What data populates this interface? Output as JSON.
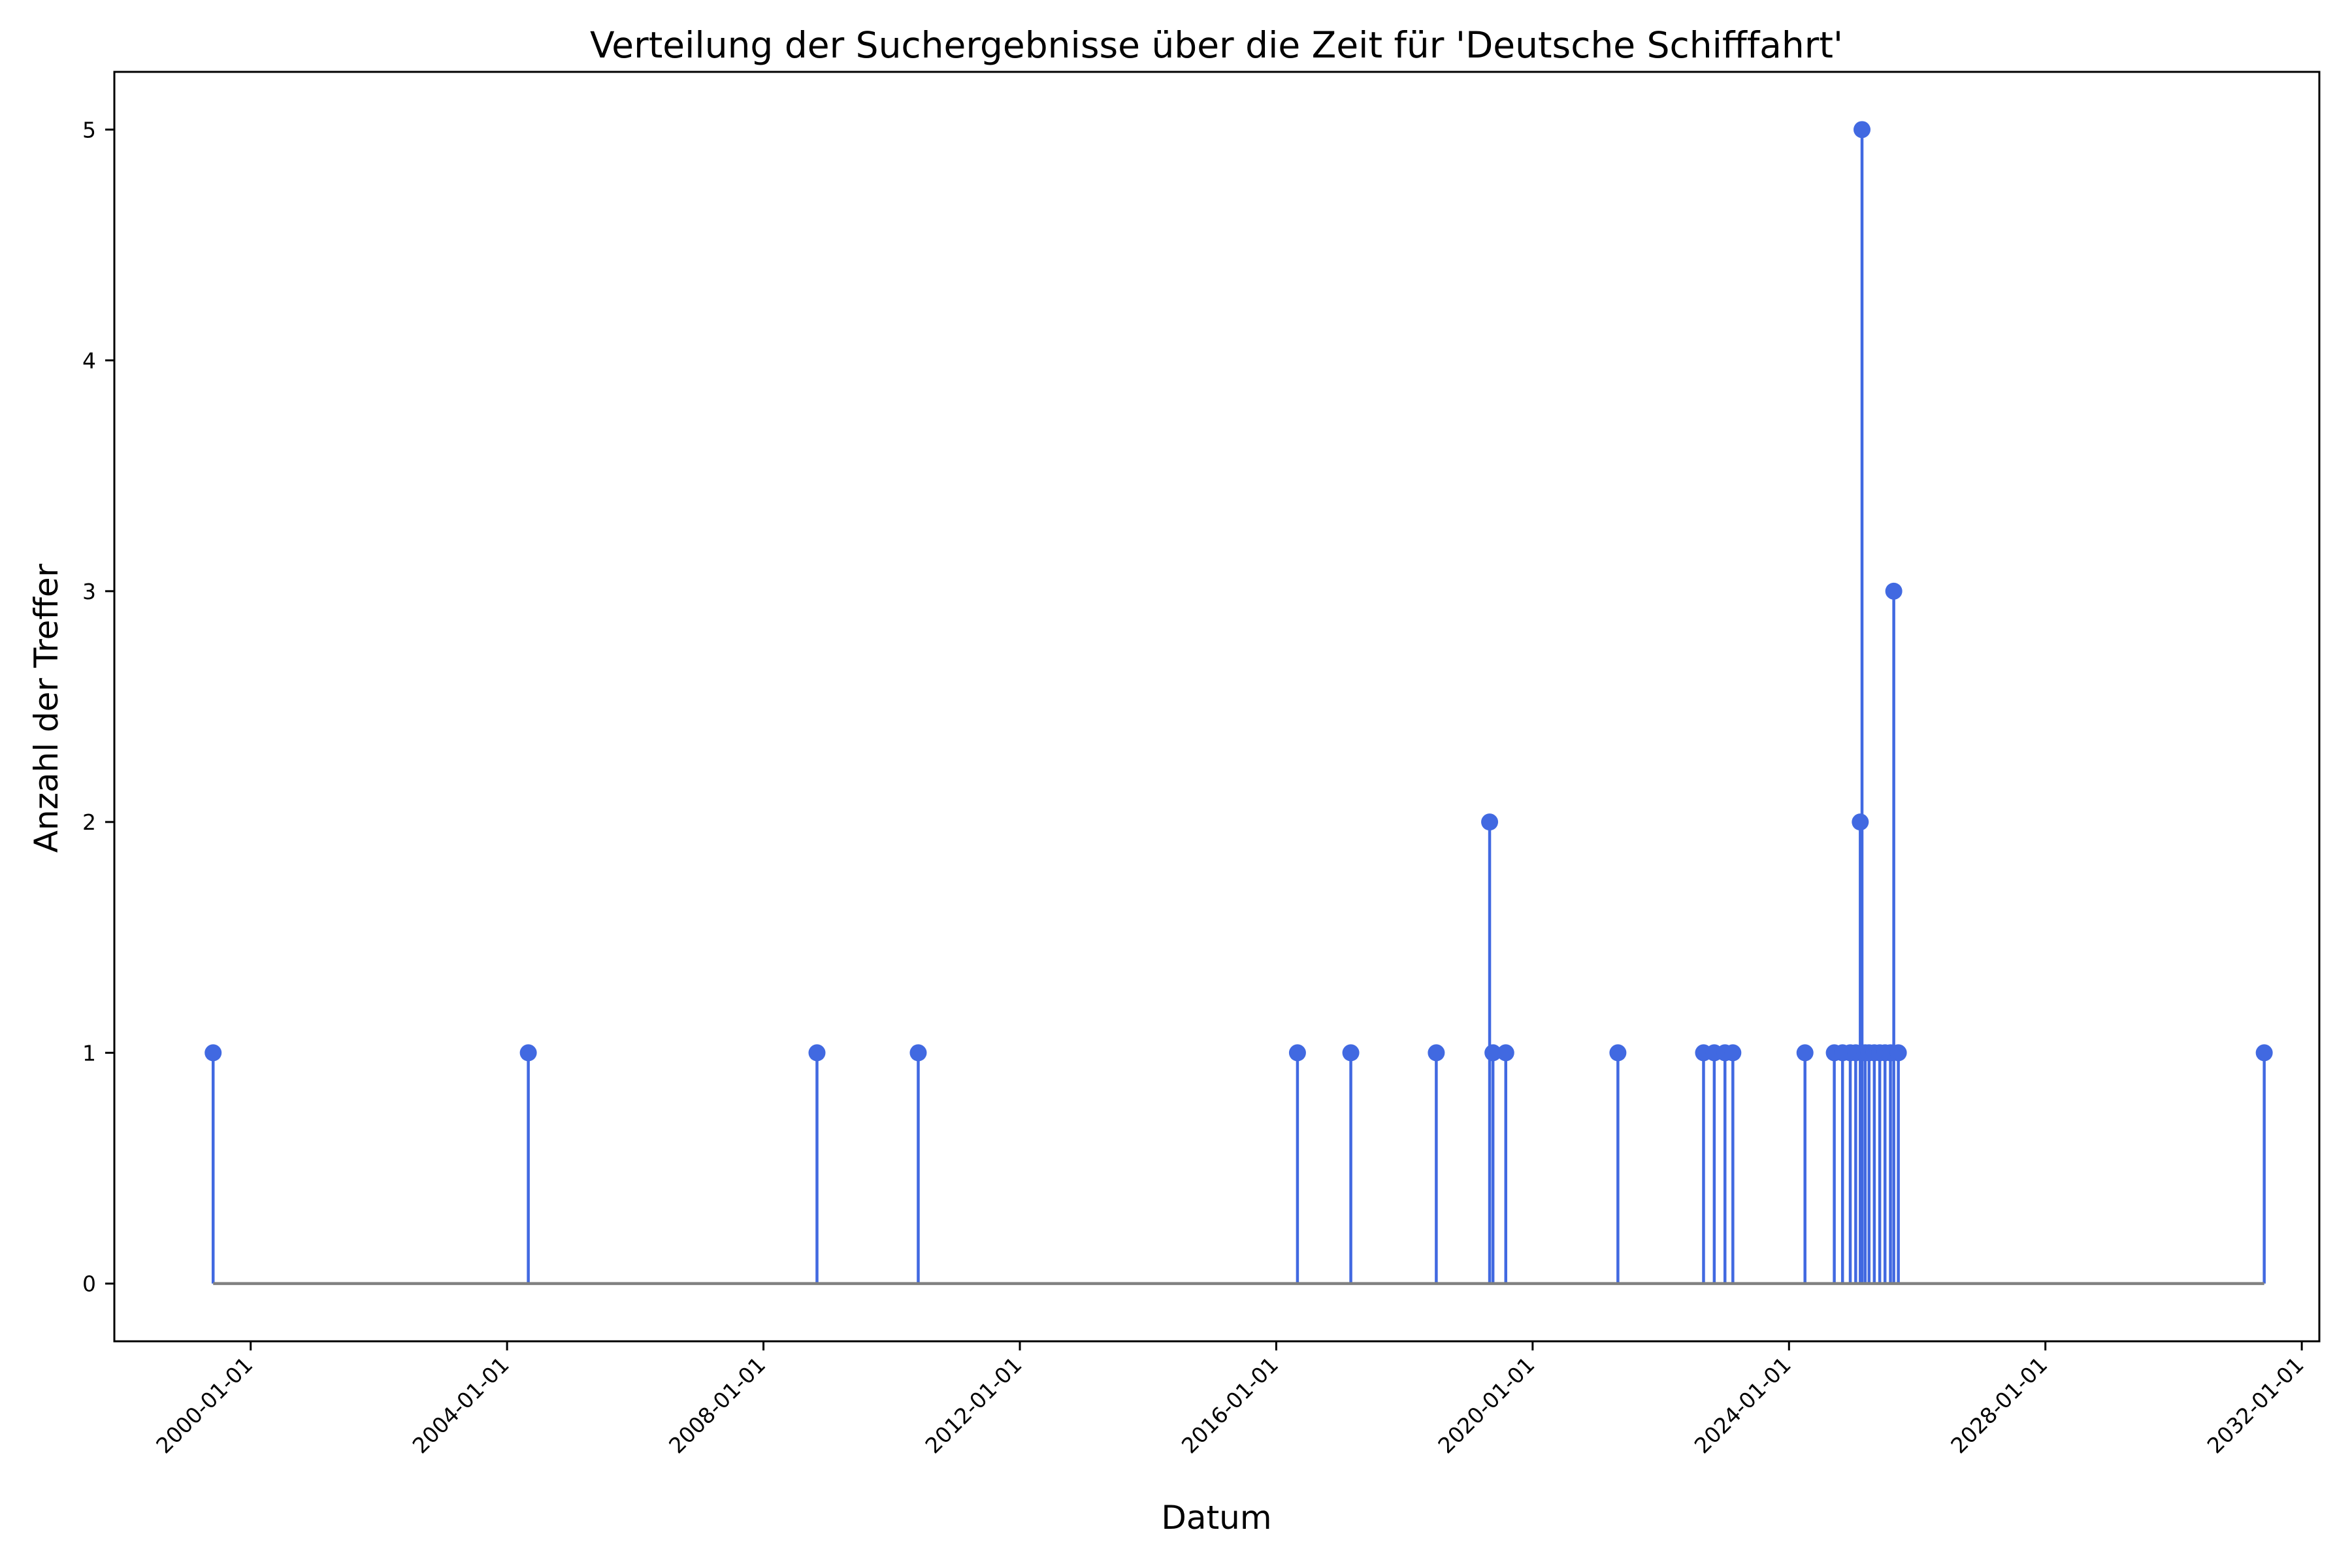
{
  "chart_data": {
    "type": "stem",
    "title": "Verteilung der Suchergebnisse über die Zeit für 'Deutsche Schifffahrt'",
    "xlabel": "Datum",
    "ylabel": "Anzahl der Treffer",
    "x_ticks": [
      "2000-01-01",
      "2004-01-01",
      "2008-01-01",
      "2012-01-01",
      "2016-01-01",
      "2020-01-01",
      "2024-01-01",
      "2028-01-01",
      "2032-01-01"
    ],
    "y_ticks": [
      "0",
      "1",
      "2",
      "3",
      "4",
      "5"
    ],
    "ylim": [
      -0.25,
      5.25
    ],
    "xlim": [
      "1997-11-15",
      "2032-04-10"
    ],
    "grid": false,
    "colors": {
      "stem": "#4169e1",
      "baseline": "#808080"
    },
    "points": [
      {
        "date": "1999-06-01",
        "value": 1
      },
      {
        "date": "2004-05-01",
        "value": 1
      },
      {
        "date": "2008-11-01",
        "value": 1
      },
      {
        "date": "2010-06-01",
        "value": 1
      },
      {
        "date": "2016-05-01",
        "value": 1
      },
      {
        "date": "2017-03-01",
        "value": 1
      },
      {
        "date": "2018-07-01",
        "value": 1
      },
      {
        "date": "2019-05-01",
        "value": 2
      },
      {
        "date": "2019-05-20",
        "value": 1
      },
      {
        "date": "2019-08-01",
        "value": 1
      },
      {
        "date": "2021-05-01",
        "value": 1
      },
      {
        "date": "2022-09-01",
        "value": 1
      },
      {
        "date": "2022-11-01",
        "value": 1
      },
      {
        "date": "2023-01-01",
        "value": 1
      },
      {
        "date": "2023-02-15",
        "value": 1
      },
      {
        "date": "2024-04-01",
        "value": 1
      },
      {
        "date": "2024-09-15",
        "value": 1
      },
      {
        "date": "2024-11-01",
        "value": 1
      },
      {
        "date": "2024-12-15",
        "value": 1
      },
      {
        "date": "2025-01-15",
        "value": 1
      },
      {
        "date": "2025-02-10",
        "value": 2
      },
      {
        "date": "2025-02-20",
        "value": 5
      },
      {
        "date": "2025-03-10",
        "value": 1
      },
      {
        "date": "2025-04-01",
        "value": 1
      },
      {
        "date": "2025-05-01",
        "value": 1
      },
      {
        "date": "2025-06-01",
        "value": 1
      },
      {
        "date": "2025-07-01",
        "value": 1
      },
      {
        "date": "2025-08-01",
        "value": 1
      },
      {
        "date": "2025-08-20",
        "value": 3
      },
      {
        "date": "2025-09-15",
        "value": 1
      },
      {
        "date": "2031-06-01",
        "value": 1
      }
    ]
  }
}
